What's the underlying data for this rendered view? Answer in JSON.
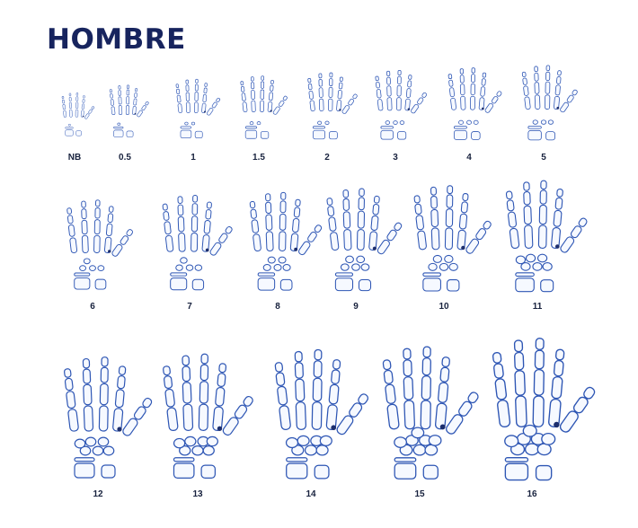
{
  "title": "HOMBRE",
  "plates": [
    {
      "label": "NB",
      "maturity": 0.0
    },
    {
      "label": "0.5",
      "maturity": 0.04
    },
    {
      "label": "1",
      "maturity": 0.08
    },
    {
      "label": "1.5",
      "maturity": 0.12
    },
    {
      "label": "2",
      "maturity": 0.17
    },
    {
      "label": "3",
      "maturity": 0.22
    },
    {
      "label": "4",
      "maturity": 0.27
    },
    {
      "label": "5",
      "maturity": 0.32
    },
    {
      "label": "6",
      "maturity": 0.4
    },
    {
      "label": "7",
      "maturity": 0.46
    },
    {
      "label": "8",
      "maturity": 0.52
    },
    {
      "label": "9",
      "maturity": 0.58
    },
    {
      "label": "10",
      "maturity": 0.64
    },
    {
      "label": "11",
      "maturity": 0.7
    },
    {
      "label": "12",
      "maturity": 0.78
    },
    {
      "label": "13",
      "maturity": 0.84
    },
    {
      "label": "14",
      "maturity": 0.9
    },
    {
      "label": "15",
      "maturity": 0.95
    },
    {
      "label": "16",
      "maturity": 1.0
    }
  ],
  "colors": {
    "title": "#17245e",
    "bone_stroke": "#2e56b4",
    "label": "#17213d"
  }
}
